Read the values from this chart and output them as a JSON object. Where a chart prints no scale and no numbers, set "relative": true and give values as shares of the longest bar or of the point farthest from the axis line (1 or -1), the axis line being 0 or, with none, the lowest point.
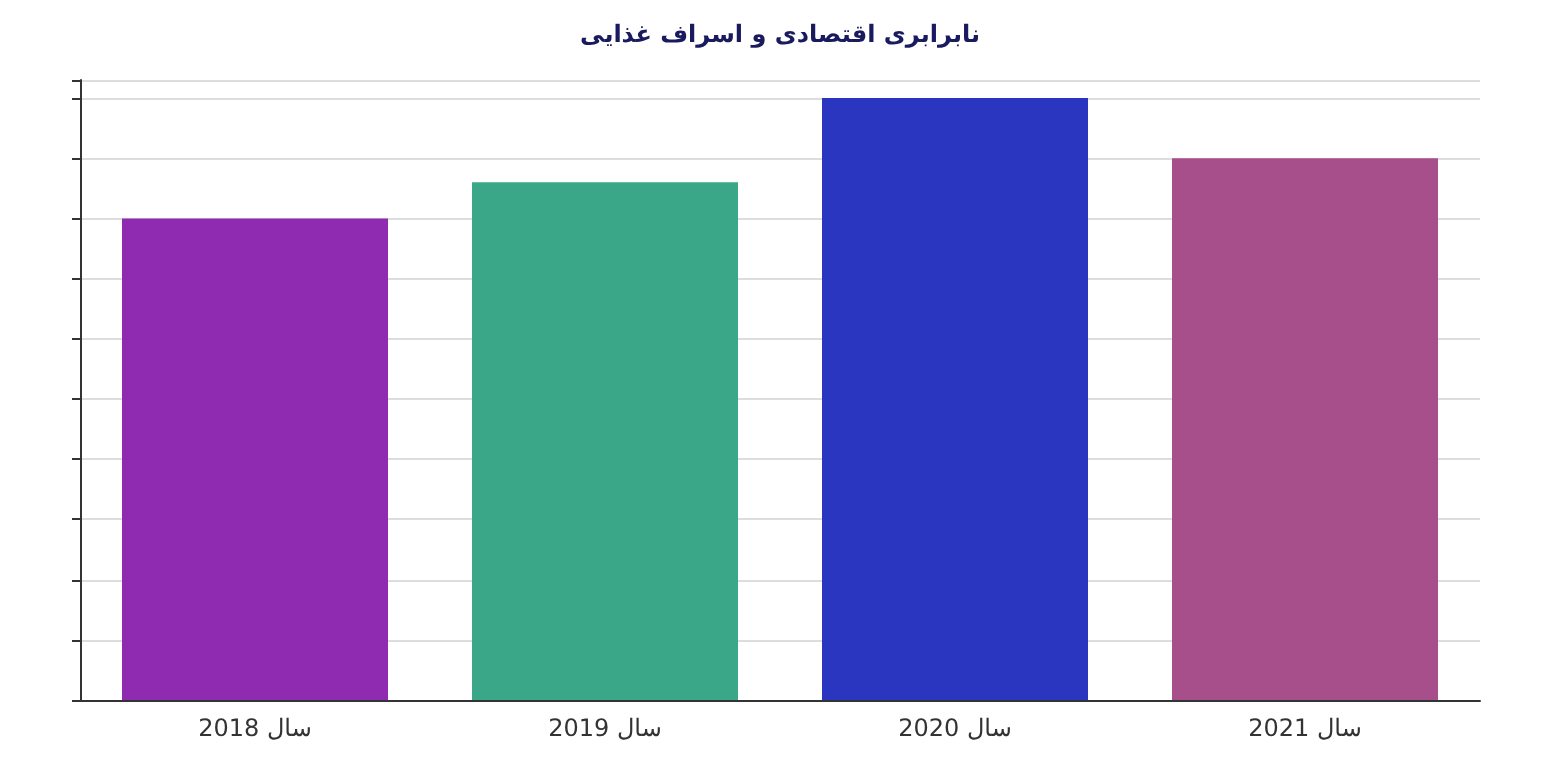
{
  "chart_data": {
    "type": "bar",
    "title": "نابرابری اقتصادی و اسراف غذایی",
    "relative": true,
    "grid": "y",
    "categories": [
      "سال 2018",
      "سال 2019",
      "سال 2020",
      "سال 2021"
    ],
    "values": [
      0.8,
      0.86,
      1,
      0.9
    ],
    "colors": [
      "#8e2bb0",
      "#3aa888",
      "#2a35c0",
      "#a64f8a"
    ]
  }
}
